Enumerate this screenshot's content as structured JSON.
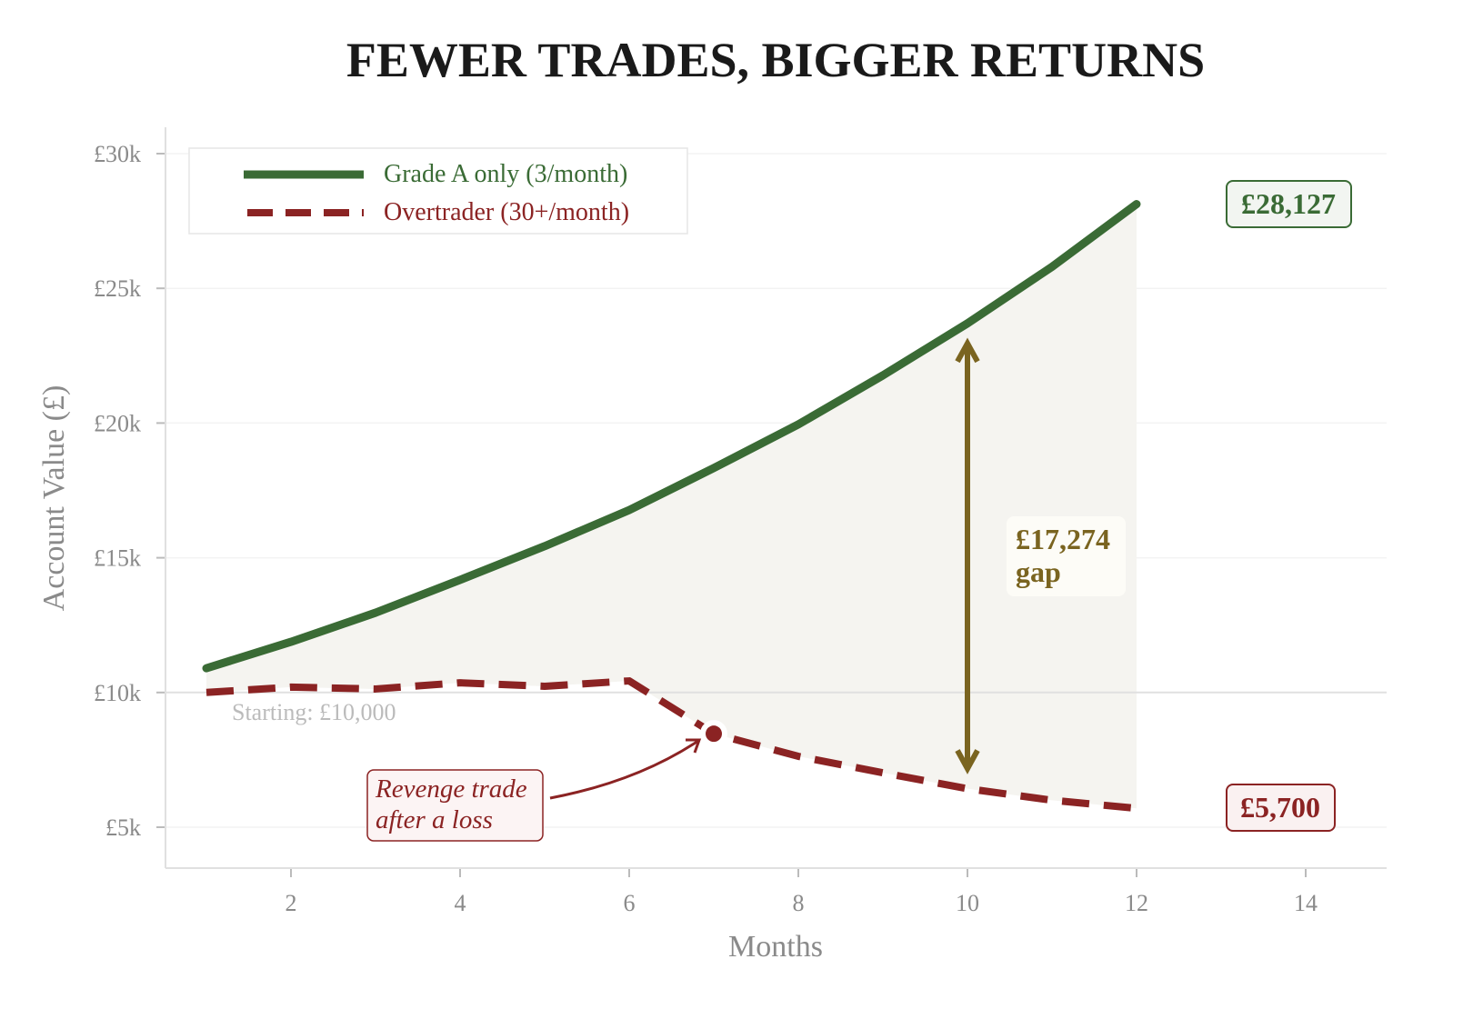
{
  "chart_data": {
    "type": "line",
    "title": "FEWER TRADES, BIGGER RETURNS",
    "xlabel": "Months",
    "ylabel": "Account Value (£)",
    "xlim": [
      0.5,
      15
    ],
    "ylim": [
      3500,
      31000
    ],
    "x_ticks": [
      2,
      4,
      6,
      8,
      10,
      12,
      14
    ],
    "x_tick_labels": [
      "2",
      "4",
      "6",
      "8",
      "10",
      "12",
      "14"
    ],
    "y_ticks": [
      5000,
      10000,
      15000,
      20000,
      25000,
      30000
    ],
    "y_tick_labels": [
      "£5k",
      "£10k",
      "£15k",
      "£20k",
      "£25k",
      "£30k"
    ],
    "grid": "horizontal",
    "legend_placement": "top-left",
    "x": [
      1,
      2,
      3,
      4,
      5,
      6,
      7,
      8,
      9,
      10,
      11,
      12
    ],
    "series": [
      {
        "name": "Grade A only (3/month)",
        "color": "#3a6b35",
        "style": "solid",
        "values": [
          10900,
          11880,
          12960,
          14180,
          15430,
          16770,
          18330,
          19950,
          21770,
          23700,
          25800,
          28127
        ]
      },
      {
        "name": "Overtrader (30+/month)",
        "color": "#8b2323",
        "style": "dashed",
        "values": [
          10000,
          10200,
          10130,
          10360,
          10230,
          10430,
          8470,
          7630,
          7020,
          6430,
          6000,
          5700
        ]
      }
    ],
    "baseline": {
      "value": 10000,
      "label": "Starting: £10,000"
    },
    "annotations": {
      "green_end": "£28,127",
      "red_end": "£5,700",
      "gap_line1": "£17,274",
      "gap_line2": "gap",
      "gap_month": 10,
      "event_month": 7,
      "event_line1": "Revenge trade",
      "event_line2": "after a loss"
    },
    "colors": {
      "gap": "#7a6420",
      "fill": "#f5f4f0"
    }
  }
}
